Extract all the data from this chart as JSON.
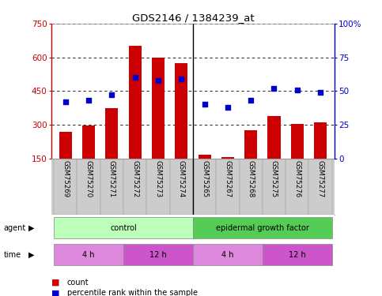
{
  "title": "GDS2146 / 1384239_at",
  "samples": [
    "GSM75269",
    "GSM75270",
    "GSM75271",
    "GSM75272",
    "GSM75273",
    "GSM75274",
    "GSM75265",
    "GSM75267",
    "GSM75268",
    "GSM75275",
    "GSM75276",
    "GSM75277"
  ],
  "counts": [
    270,
    295,
    375,
    650,
    600,
    575,
    165,
    155,
    275,
    340,
    305,
    310
  ],
  "percentile": [
    42,
    43,
    47,
    60,
    58,
    59,
    40,
    38,
    43,
    52,
    51,
    49
  ],
  "ylim_left": [
    150,
    750
  ],
  "ylim_right": [
    0,
    100
  ],
  "yticks_left": [
    150,
    300,
    450,
    600,
    750
  ],
  "yticks_right": [
    0,
    25,
    50,
    75,
    100
  ],
  "bar_color": "#cc0000",
  "dot_color": "#0000cc",
  "plot_bg": "#ffffff",
  "agent_control_color": "#bbffbb",
  "agent_egf_color": "#55cc55",
  "time_light_color": "#dd88dd",
  "time_dark_color": "#cc55cc",
  "agent_row": [
    {
      "label": "control",
      "start": 0,
      "end": 6
    },
    {
      "label": "epidermal growth factor",
      "start": 6,
      "end": 12
    }
  ],
  "time_row": [
    {
      "label": "4 h",
      "start": 0,
      "end": 3
    },
    {
      "label": "12 h",
      "start": 3,
      "end": 6
    },
    {
      "label": "4 h",
      "start": 6,
      "end": 9
    },
    {
      "label": "12 h",
      "start": 9,
      "end": 12
    }
  ],
  "legend_count_color": "#cc0000",
  "legend_dot_color": "#0000cc",
  "left_axis_color": "#cc0000",
  "right_axis_color": "#0000cc",
  "baseline": 150,
  "n": 12
}
